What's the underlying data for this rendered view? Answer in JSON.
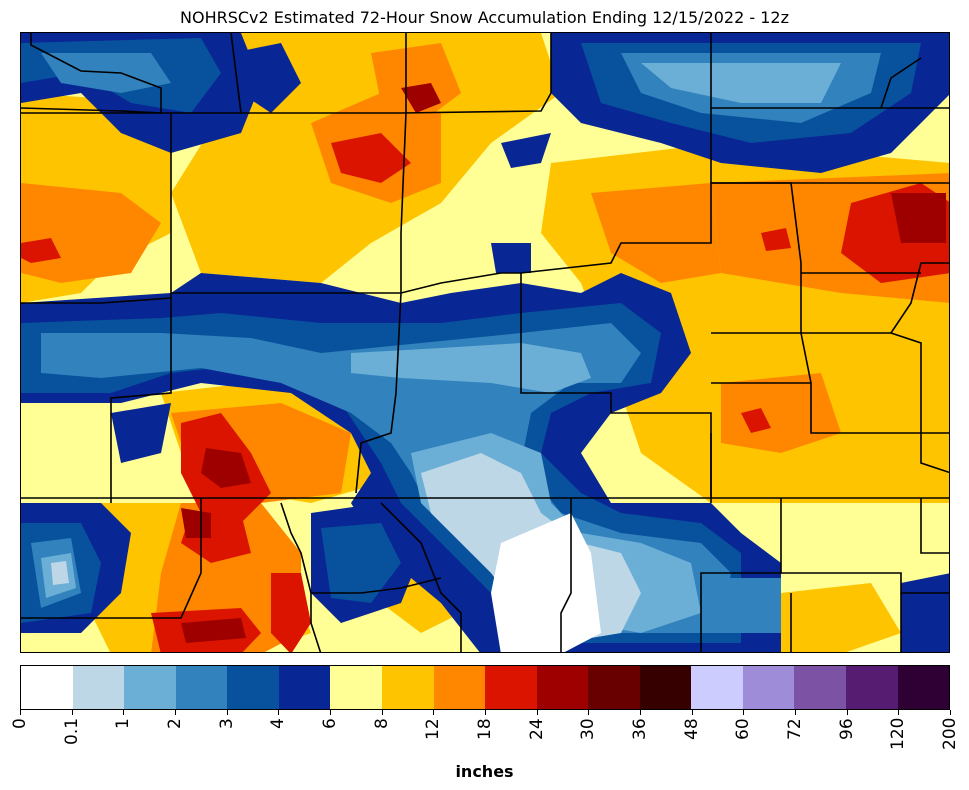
{
  "title": "NOHRSCv2 Estimated 72-Hour Snow Accumulation Ending 12/15/2022 - 12z",
  "legend": {
    "units": "inches",
    "levels": [
      "0",
      "0.1",
      "1",
      "2",
      "3",
      "4",
      "6",
      "8",
      "12",
      "18",
      "24",
      "30",
      "36",
      "48",
      "60",
      "72",
      "96",
      "120",
      "200"
    ],
    "colors": [
      "#ffffff",
      "#bdd7e7",
      "#6baed6",
      "#3182bd",
      "#08519c",
      "#082694",
      "#ffff96",
      "#ffc400",
      "#ff8700",
      "#db1400",
      "#9e0000",
      "#690000",
      "#360000",
      "#ccccff",
      "#9f8cd8",
      "#7c52a5",
      "#561c72",
      "#2e0033"
    ]
  }
}
